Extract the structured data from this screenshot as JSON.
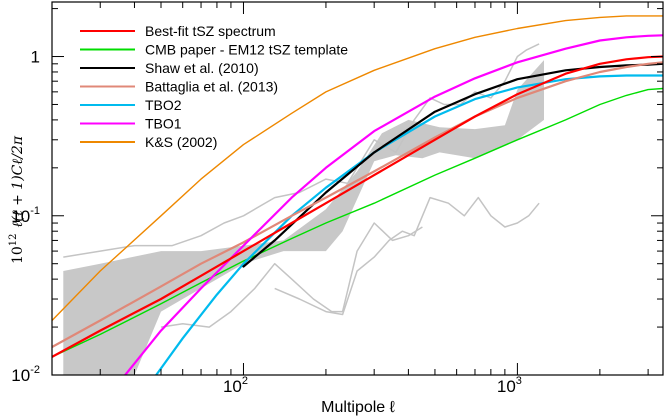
{
  "chart_data": {
    "type": "line",
    "title": "",
    "xlabel": "Multipole ℓ",
    "ylabel": {
      "prefix": "10",
      "prefix_exp": "12",
      "expr": "ℓ(ℓ + 1)Cℓ/2π"
    },
    "x_scale": "log",
    "y_scale": "log",
    "xlim": [
      20,
      3400
    ],
    "ylim": [
      0.01,
      2.2
    ],
    "x_tick_labels": [
      {
        "value": 100,
        "base": "10",
        "exp": "2"
      },
      {
        "value": 1000,
        "base": "10",
        "exp": "3"
      }
    ],
    "y_tick_labels": [
      {
        "value": 0.01,
        "base": "10",
        "exp": "-2"
      },
      {
        "value": 0.1,
        "base": "10",
        "exp": "-1"
      },
      {
        "value": 1,
        "base": "1",
        "exp": ""
      }
    ],
    "grid": false,
    "legend": {
      "placement": "top-left",
      "entries": [
        {
          "label": "Best-fit tSZ spectrum",
          "color": "#ff0000"
        },
        {
          "label": "CMB paper - EM12 tSZ template",
          "color": "#00dd00"
        },
        {
          "label": "Shaw et al. (2010)",
          "color": "#000000"
        },
        {
          "label": "Battaglia et al. (2013)",
          "color": "#e08878"
        },
        {
          "label": "TBO2",
          "color": "#00bbee"
        },
        {
          "label": "TBO1",
          "color": "#ff00ff"
        },
        {
          "label": "K&S (2002)",
          "color": "#ee8800"
        }
      ]
    },
    "band": {
      "name": "data uncertainty band",
      "color": "#c8c8c8",
      "upper": [
        [
          22,
          0.045
        ],
        [
          30,
          0.05
        ],
        [
          50,
          0.06
        ],
        [
          70,
          0.06
        ],
        [
          100,
          0.065
        ],
        [
          140,
          0.07
        ],
        [
          200,
          0.11
        ],
        [
          260,
          0.19
        ],
        [
          320,
          0.33
        ],
        [
          400,
          0.4
        ],
        [
          520,
          0.36
        ],
        [
          700,
          0.35
        ],
        [
          900,
          0.37
        ],
        [
          1000,
          0.62
        ],
        [
          1250,
          0.95
        ]
      ],
      "lower": [
        [
          22,
          0.01
        ],
        [
          30,
          0.01
        ],
        [
          40,
          0.01
        ],
        [
          50,
          0.025
        ],
        [
          70,
          0.035
        ],
        [
          100,
          0.05
        ],
        [
          140,
          0.06
        ],
        [
          200,
          0.06
        ],
        [
          230,
          0.08
        ],
        [
          300,
          0.22
        ],
        [
          360,
          0.24
        ],
        [
          450,
          0.23
        ],
        [
          520,
          0.25
        ],
        [
          700,
          0.23
        ],
        [
          900,
          0.28
        ],
        [
          1000,
          0.3
        ],
        [
          1250,
          0.4
        ]
      ]
    },
    "series": [
      {
        "name": "Best-fit tSZ spectrum",
        "color": "#ff0000",
        "width": 2.2,
        "x": [
          20,
          30,
          50,
          70,
          100,
          150,
          200,
          300,
          500,
          700,
          1000,
          1500,
          2000,
          2500,
          3000,
          3400
        ],
        "y": [
          0.013,
          0.019,
          0.03,
          0.042,
          0.06,
          0.09,
          0.12,
          0.18,
          0.3,
          0.42,
          0.58,
          0.78,
          0.9,
          0.96,
          0.99,
          1.0
        ]
      },
      {
        "name": "CMB paper - EM12 tSZ template",
        "color": "#00dd00",
        "width": 1.4,
        "x": [
          20,
          30,
          50,
          70,
          100,
          150,
          200,
          300,
          500,
          700,
          1000,
          1500,
          2000,
          2500,
          3000,
          3400
        ],
        "y": [
          0.013,
          0.018,
          0.028,
          0.038,
          0.052,
          0.072,
          0.09,
          0.12,
          0.18,
          0.23,
          0.3,
          0.4,
          0.5,
          0.57,
          0.62,
          0.63
        ]
      },
      {
        "name": "Shaw et al. (2010)",
        "color": "#000000",
        "width": 2.2,
        "x": [
          100,
          130,
          200,
          300,
          500,
          700,
          1000,
          1500,
          2000,
          2500,
          3000,
          3400
        ],
        "y": [
          0.048,
          0.07,
          0.14,
          0.25,
          0.45,
          0.58,
          0.72,
          0.82,
          0.86,
          0.88,
          0.89,
          0.9
        ]
      },
      {
        "name": "Battaglia et al. (2013)",
        "color": "#e08878",
        "width": 2.2,
        "x": [
          20,
          30,
          50,
          70,
          100,
          150,
          200,
          300,
          500,
          700,
          1000,
          1500,
          2000,
          2500,
          3000,
          3400
        ],
        "y": [
          0.015,
          0.022,
          0.036,
          0.05,
          0.068,
          0.1,
          0.13,
          0.19,
          0.31,
          0.42,
          0.55,
          0.7,
          0.8,
          0.86,
          0.9,
          0.92
        ]
      },
      {
        "name": "TBO2",
        "color": "#00bbee",
        "width": 2.2,
        "x": [
          48,
          60,
          80,
          100,
          150,
          200,
          300,
          500,
          700,
          1000,
          1500,
          2000,
          2500,
          3000,
          3400
        ],
        "y": [
          0.01,
          0.017,
          0.032,
          0.05,
          0.1,
          0.15,
          0.25,
          0.42,
          0.54,
          0.64,
          0.72,
          0.75,
          0.76,
          0.76,
          0.76
        ]
      },
      {
        "name": "TBO1",
        "color": "#ff00ff",
        "width": 2.2,
        "x": [
          37,
          50,
          70,
          100,
          150,
          200,
          300,
          500,
          700,
          1000,
          1500,
          2000,
          2500,
          3000,
          3400
        ],
        "y": [
          0.01,
          0.019,
          0.035,
          0.065,
          0.13,
          0.2,
          0.34,
          0.56,
          0.73,
          0.92,
          1.12,
          1.26,
          1.32,
          1.35,
          1.36
        ]
      },
      {
        "name": "K&S (2002)",
        "color": "#ee8800",
        "width": 1.4,
        "x": [
          20,
          30,
          50,
          70,
          100,
          150,
          200,
          300,
          500,
          700,
          1000,
          1500,
          2000,
          2500,
          3000,
          3400
        ],
        "y": [
          0.022,
          0.045,
          0.1,
          0.17,
          0.28,
          0.44,
          0.6,
          0.82,
          1.12,
          1.32,
          1.5,
          1.68,
          1.76,
          1.8,
          1.8,
          1.8
        ]
      }
    ],
    "extra_series": [
      {
        "name": "grey-upper",
        "color": "#c4c4c4",
        "width": 1.5,
        "x": [
          22,
          30,
          40,
          55,
          70,
          85,
          100,
          130,
          160,
          200,
          240,
          300,
          360,
          420,
          480,
          540,
          620,
          700,
          800,
          900,
          1000,
          1080,
          1200
        ],
        "y": [
          0.055,
          0.06,
          0.065,
          0.065,
          0.075,
          0.09,
          0.1,
          0.13,
          0.14,
          0.17,
          0.16,
          0.3,
          0.25,
          0.4,
          0.55,
          0.5,
          0.5,
          0.6,
          0.55,
          0.7,
          1.0,
          1.1,
          1.2
        ]
      },
      {
        "name": "grey-lower",
        "color": "#c4c4c4",
        "width": 1.5,
        "x": [
          50,
          60,
          75,
          90,
          110,
          130,
          150,
          180,
          210,
          230,
          260,
          300,
          350,
          400,
          450
        ],
        "y": [
          0.02,
          0.021,
          0.02,
          0.025,
          0.035,
          0.05,
          0.04,
          0.03,
          0.025,
          0.025,
          0.06,
          0.09,
          0.07,
          0.075,
          0.085
        ]
      },
      {
        "name": "grey-lowest",
        "color": "#c4c4c4",
        "width": 1.5,
        "x": [
          130,
          160,
          200,
          230,
          260,
          300,
          340,
          380,
          420,
          480,
          560,
          640,
          720,
          800,
          900,
          1000,
          1100,
          1200
        ],
        "y": [
          0.035,
          0.03,
          0.025,
          0.024,
          0.045,
          0.055,
          0.07,
          0.08,
          0.075,
          0.13,
          0.12,
          0.1,
          0.13,
          0.1,
          0.085,
          0.09,
          0.1,
          0.12
        ]
      }
    ]
  }
}
